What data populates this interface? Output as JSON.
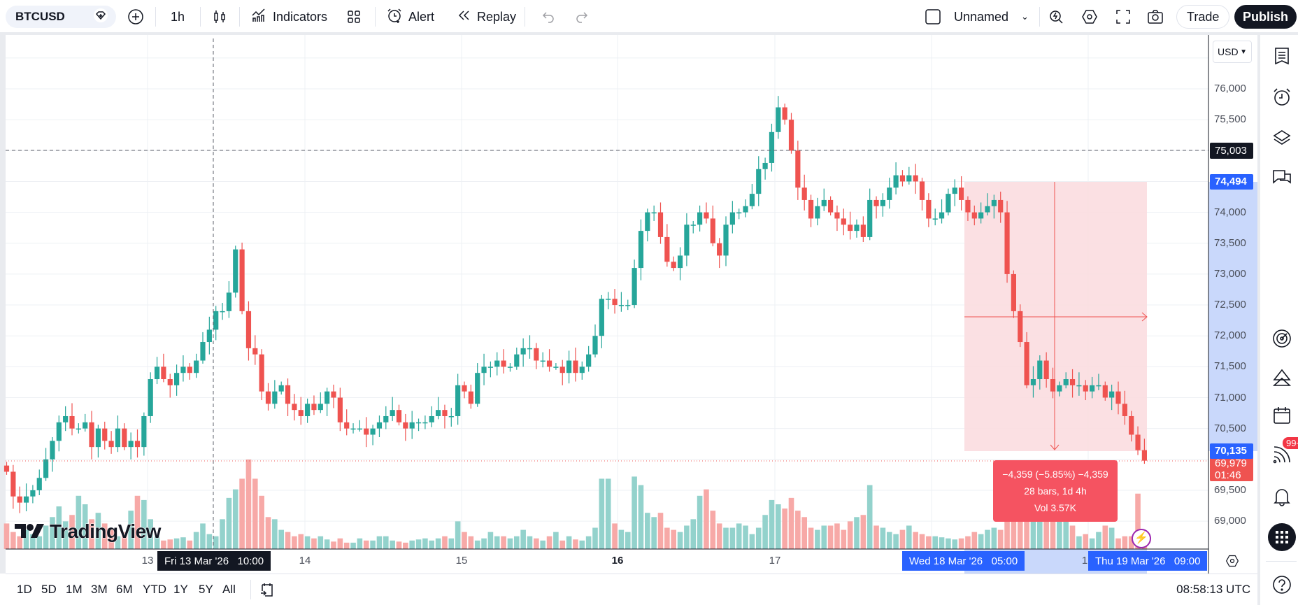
{
  "toolbar": {
    "symbol": "BTCUSD",
    "interval": "1h",
    "indicators_label": "Indicators",
    "alert_label": "Alert",
    "replay_label": "Replay",
    "layout_name": "Unnamed",
    "trade_label": "Trade",
    "publish_label": "Publish"
  },
  "price_axis": {
    "currency": "USD",
    "ticks": [
      "76,000",
      "75,500",
      "74,000",
      "73,500",
      "73,000",
      "72,500",
      "72,000",
      "71,500",
      "71,000",
      "70,500",
      "69,500",
      "69,000"
    ],
    "crosshair_price": "75,003",
    "measure_top": "74,494",
    "measure_bottom": "70,135",
    "last_price": "69,979",
    "countdown": "01:46"
  },
  "time_axis": {
    "ticks": [
      "13",
      "14",
      "15",
      "16",
      "17",
      "1"
    ],
    "crosshair_time": "Fri 13 Mar '26   10:00",
    "measure_start": "Wed 18 Mar '26   05:00",
    "measure_end": "Thu 19 Mar '26   09:00"
  },
  "measure_tooltip": {
    "line1": "−4,359 (−5.85%) −4,359",
    "line2": "28 bars, 1d 4h",
    "line3": "Vol 3.57K"
  },
  "watermark": "TradingView",
  "bottom": {
    "ranges": [
      "1D",
      "5D",
      "1M",
      "3M",
      "6M",
      "YTD",
      "1Y",
      "5Y",
      "All"
    ],
    "clock": "08:58:13 UTC"
  },
  "sidebar": {
    "notification_badge": "99+"
  },
  "colors": {
    "up": "#26a69a",
    "down": "#ef5350",
    "up_volume": "#93d2cc",
    "down_volume": "#f7a9a7",
    "measure_fill": "#fbdde0",
    "accent": "#2962ff"
  },
  "chart_data": {
    "type": "candlestick",
    "interval": "1h",
    "first_open": 69900,
    "closes": [
      69800,
      69400,
      69300,
      69400,
      69500,
      69700,
      70000,
      70300,
      70600,
      70700,
      70500,
      70500,
      70600,
      70200,
      70500,
      70300,
      70200,
      70500,
      70200,
      70300,
      70200,
      70700,
      71300,
      71500,
      71300,
      71200,
      71400,
      71500,
      71400,
      71600,
      71900,
      72100,
      72400,
      72400,
      72700,
      73400,
      72400,
      71800,
      71700,
      71100,
      70900,
      71100,
      71200,
      70900,
      70800,
      70700,
      70900,
      70800,
      70900,
      71100,
      71000,
      70600,
      70500,
      70500,
      70500,
      70400,
      70500,
      70600,
      70700,
      70800,
      70600,
      70500,
      70600,
      70600,
      70600,
      70700,
      70800,
      70700,
      70700,
      71200,
      71100,
      70900,
      71400,
      71500,
      71500,
      71600,
      71500,
      71500,
      71700,
      71800,
      71800,
      71600,
      71600,
      71500,
      71500,
      71400,
      71600,
      71400,
      71500,
      71700,
      72000,
      72600,
      72600,
      72500,
      72500,
      72500,
      73100,
      73700,
      74000,
      74000,
      73600,
      73200,
      73100,
      73300,
      73800,
      73800,
      74000,
      73900,
      73500,
      73300,
      73800,
      74000,
      74000,
      74100,
      74300,
      74700,
      74800,
      75300,
      75700,
      75500,
      75000,
      74400,
      74200,
      73900,
      74100,
      74200,
      74000,
      73900,
      73800,
      73700,
      73800,
      73600,
      74200,
      74100,
      74200,
      74400,
      74600,
      74500,
      74600,
      74500,
      74200,
      73900,
      73900,
      74000,
      74300,
      74400,
      74200,
      74000,
      73900,
      74000,
      74100,
      74200,
      74000,
      73000,
      72400,
      71900,
      71200,
      71300,
      71600,
      71300,
      71100,
      71200,
      71300,
      71200,
      71200,
      71100,
      71200,
      71200,
      71000,
      71100,
      70900,
      70700,
      70400,
      70150,
      69979
    ],
    "volumes": [
      120,
      80,
      60,
      90,
      70,
      60,
      110,
      150,
      200,
      130,
      160,
      250,
      210,
      140,
      170,
      120,
      90,
      60,
      80,
      180,
      250,
      230,
      140,
      60,
      40,
      45,
      50,
      55,
      40,
      80,
      120,
      70,
      60,
      140,
      240,
      280,
      330,
      420,
      330,
      250,
      150,
      140,
      90,
      80,
      60,
      70,
      60,
      50,
      60,
      45,
      35,
      50,
      30,
      30,
      50,
      40,
      40,
      60,
      60,
      40,
      35,
      30,
      40,
      45,
      50,
      40,
      50,
      60,
      50,
      130,
      80,
      60,
      40,
      50,
      80,
      60,
      60,
      50,
      60,
      90,
      60,
      50,
      40,
      60,
      80,
      40,
      60,
      45,
      40,
      60,
      100,
      330,
      330,
      120,
      90,
      80,
      340,
      300,
      170,
      150,
      170,
      100,
      90,
      80,
      110,
      140,
      250,
      280,
      180,
      120,
      100,
      100,
      120,
      110,
      70,
      100,
      160,
      230,
      210,
      190,
      240,
      180,
      150,
      100,
      90,
      110,
      110,
      120,
      90,
      130,
      150,
      160,
      300,
      110,
      100,
      80,
      70,
      90,
      110,
      80,
      70,
      60,
      60,
      55,
      50,
      45,
      50,
      60,
      80,
      70,
      90,
      100,
      90,
      190,
      280,
      300,
      250,
      240,
      300,
      240,
      300,
      270,
      140,
      110,
      60,
      70,
      50,
      80,
      110,
      100,
      50,
      60,
      60,
      260,
      30
    ],
    "y_range": [
      68700,
      76300
    ],
    "grid": true
  }
}
